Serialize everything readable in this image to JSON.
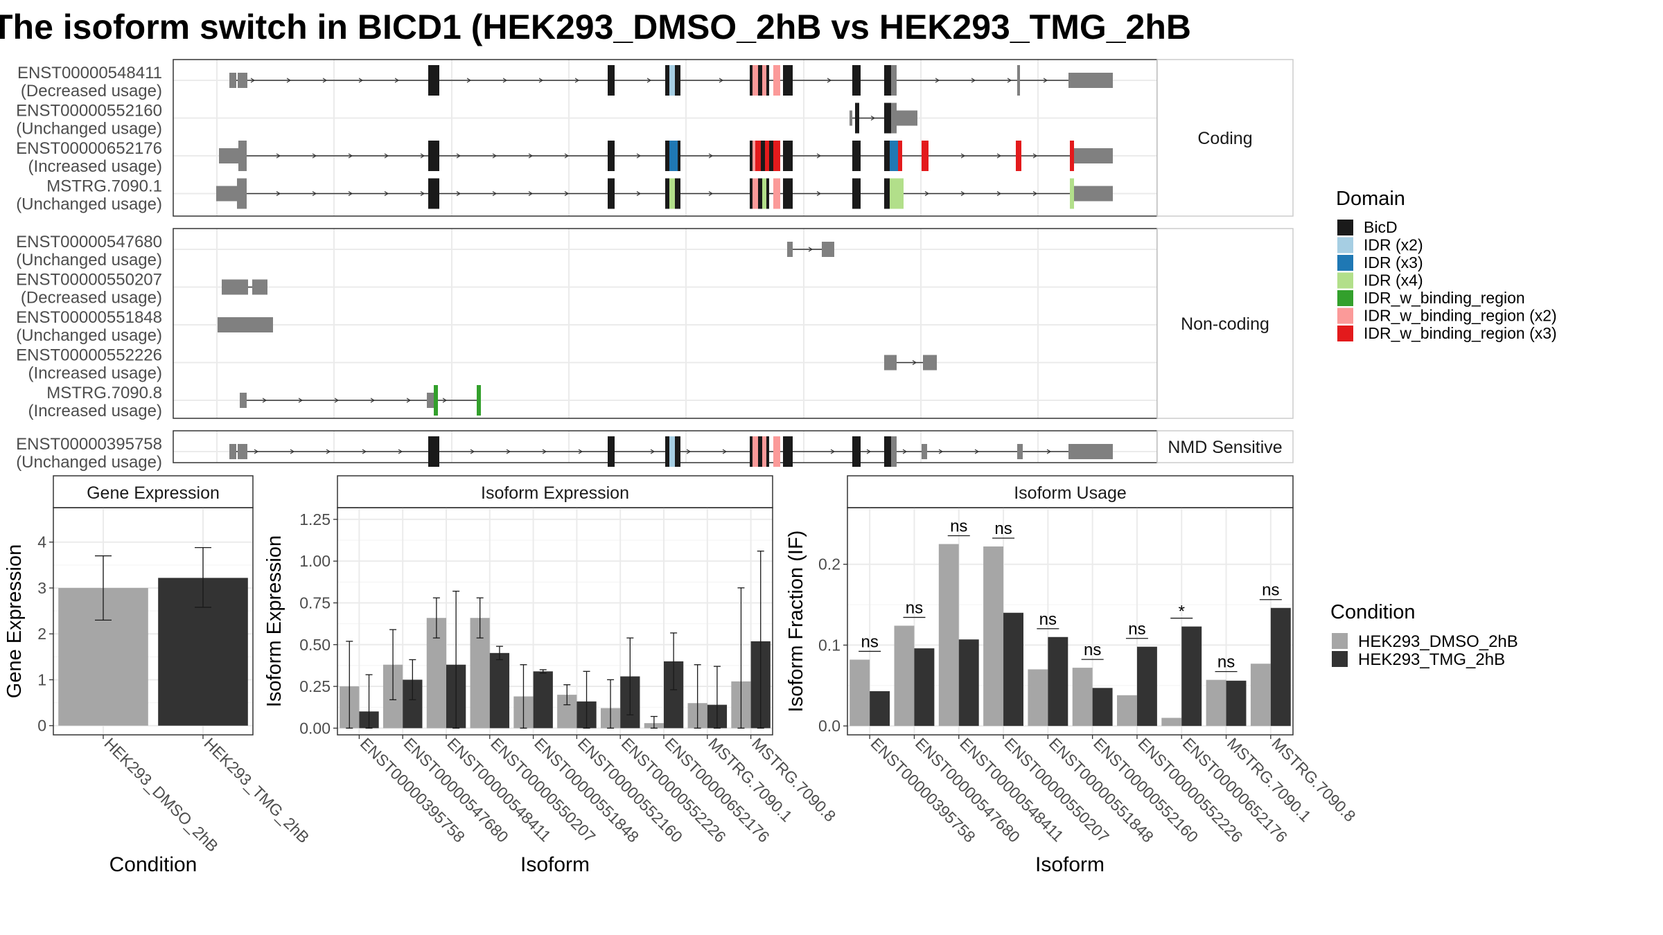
{
  "title": "The isoform switch in BICD1 (HEK293_DMSO_2hB vs HEK293_TMG_2hB",
  "colors": {
    "dmso": "#a6a6a6",
    "tmg": "#333333",
    "exon": "#808080",
    "BicD": "#1a1a1a",
    "IDR (x2)": "#a6cee3",
    "IDR (x3)": "#1f78b4",
    "IDR (x4)": "#b2df8a",
    "IDR_w_binding_region": "#33a02c",
    "IDR_w_binding_region (x2)": "#fb9a99",
    "IDR_w_binding_region (x3)": "#e31a1c"
  },
  "structure": {
    "groups": [
      {
        "name": "Coding",
        "transcripts": [
          {
            "id": "ENST00000548411",
            "status": "(Decreased usage)"
          },
          {
            "id": "ENST00000552160",
            "status": "(Unchanged usage)"
          },
          {
            "id": "ENST00000652176",
            "status": "(Increased usage)"
          },
          {
            "id": "MSTRG.7090.1",
            "status": "(Unchanged usage)"
          }
        ]
      },
      {
        "name": "Non-coding",
        "transcripts": [
          {
            "id": "ENST00000547680",
            "status": "(Unchanged usage)"
          },
          {
            "id": "ENST00000550207",
            "status": "(Decreased usage)"
          },
          {
            "id": "ENST00000551848",
            "status": "(Unchanged usage)"
          },
          {
            "id": "ENST00000552226",
            "status": "(Increased usage)"
          },
          {
            "id": "MSTRG.7090.8",
            "status": "(Increased usage)"
          }
        ]
      },
      {
        "name": "NMD Sensitive",
        "transcripts": [
          {
            "id": "ENST00000395758",
            "status": "(Unchanged usage)"
          }
        ]
      }
    ]
  },
  "domain_legend": {
    "title": "Domain",
    "items": [
      "BicD",
      "IDR (x2)",
      "IDR (x3)",
      "IDR (x4)",
      "IDR_w_binding_region",
      "IDR_w_binding_region (x2)",
      "IDR_w_binding_region (x3)"
    ]
  },
  "condition_legend": {
    "title": "Condition",
    "items": [
      "HEK293_DMSO_2hB",
      "HEK293_TMG_2hB"
    ]
  },
  "chart_data": [
    {
      "type": "bar",
      "title": "Gene Expression",
      "xlabel": "Condition",
      "ylabel": "Gene Expression",
      "categories": [
        "HEK293_DMSO_2hB",
        "HEK293_TMG_2hB"
      ],
      "values": [
        3.0,
        3.22
      ],
      "error_low": [
        2.3,
        2.58
      ],
      "error_high": [
        3.7,
        3.88
      ],
      "ylim": [
        -0.2,
        4.75
      ],
      "yticks": [
        0,
        1,
        2,
        3,
        4
      ],
      "grid": true
    },
    {
      "type": "bar",
      "title": "Isoform Expression",
      "xlabel": "Isoform",
      "ylabel": "Isoform Expression",
      "categories": [
        "ENST00000395758",
        "ENST00000547680",
        "ENST00000548411",
        "ENST00000550207",
        "ENST00000551848",
        "ENST00000552160",
        "ENST00000552226",
        "ENST00000652176",
        "MSTRG.7090.1",
        "MSTRG.7090.8"
      ],
      "series": [
        {
          "name": "HEK293_DMSO_2hB",
          "values": [
            0.25,
            0.38,
            0.66,
            0.66,
            0.19,
            0.2,
            0.12,
            0.03,
            0.15,
            0.28
          ],
          "error_low": [
            0.0,
            0.17,
            0.54,
            0.54,
            0.0,
            0.14,
            0.0,
            0.0,
            0.0,
            0.0
          ],
          "error_high": [
            0.52,
            0.59,
            0.78,
            0.78,
            0.38,
            0.26,
            0.29,
            0.07,
            0.38,
            0.84
          ]
        },
        {
          "name": "HEK293_TMG_2hB",
          "values": [
            0.1,
            0.29,
            0.38,
            0.45,
            0.34,
            0.16,
            0.31,
            0.4,
            0.14,
            0.52
          ],
          "error_low": [
            0.0,
            0.17,
            0.0,
            0.41,
            0.33,
            0.0,
            0.08,
            0.23,
            0.0,
            0.0
          ],
          "error_high": [
            0.32,
            0.41,
            0.82,
            0.49,
            0.35,
            0.34,
            0.54,
            0.57,
            0.37,
            1.06
          ]
        }
      ],
      "ylim": [
        -0.04,
        1.32
      ],
      "yticks": [
        0.0,
        0.25,
        0.5,
        0.75,
        1.0,
        1.25
      ],
      "ytick_labels": [
        "0.00",
        "0.25",
        "0.50",
        "0.75",
        "1.00",
        "1.25"
      ],
      "grid": true
    },
    {
      "type": "bar",
      "title": "Isoform Usage",
      "xlabel": "Isoform",
      "ylabel": "Isoform Fraction (IF)",
      "categories": [
        "ENST00000395758",
        "ENST00000547680",
        "ENST00000548411",
        "ENST00000550207",
        "ENST00000551848",
        "ENST00000552160",
        "ENST00000552226",
        "ENST00000652176",
        "MSTRG.7090.1",
        "MSTRG.7090.8"
      ],
      "series": [
        {
          "name": "HEK293_DMSO_2hB",
          "values": [
            0.082,
            0.124,
            0.225,
            0.222,
            0.07,
            0.072,
            0.038,
            0.01,
            0.057,
            0.077
          ]
        },
        {
          "name": "HEK293_TMG_2hB",
          "values": [
            0.043,
            0.096,
            0.107,
            0.14,
            0.11,
            0.047,
            0.098,
            0.123,
            0.056,
            0.146
          ]
        }
      ],
      "significance": [
        "ns",
        "ns",
        "ns",
        "ns",
        "ns",
        "ns",
        "ns",
        "*",
        "ns",
        "ns"
      ],
      "ylim": [
        -0.011,
        0.27
      ],
      "yticks": [
        0.0,
        0.1,
        0.2
      ],
      "ytick_labels": [
        "0.0",
        "0.1",
        "0.2"
      ],
      "grid": true
    }
  ]
}
